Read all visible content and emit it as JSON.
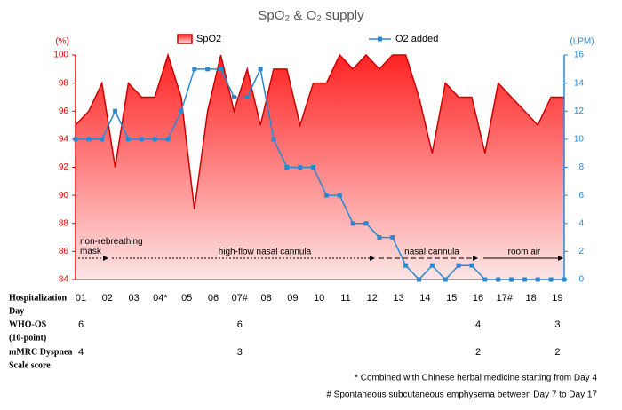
{
  "chart_data": {
    "type": "area_line",
    "title": "SpO₂ & O₂ supply",
    "y_label": "(%)",
    "y2_label": "(LPM)",
    "ylim": [
      84,
      100
    ],
    "yticks": [
      84,
      86,
      88,
      90,
      92,
      94,
      96,
      98,
      100
    ],
    "y2lim": [
      0,
      16
    ],
    "y2ticks": [
      0,
      2,
      4,
      6,
      8,
      10,
      12,
      14,
      16
    ],
    "xlim": [
      1,
      19.5
    ],
    "x": [
      1,
      1.5,
      2,
      2.5,
      3,
      3.5,
      4,
      4.5,
      5,
      5.5,
      6,
      6.5,
      7,
      7.5,
      8,
      8.5,
      9,
      9.5,
      10,
      10.5,
      11,
      11.5,
      12,
      12.5,
      13,
      13.5,
      14,
      14.5,
      15,
      15.5,
      16,
      16.5,
      17,
      17.5,
      18,
      18.5,
      19,
      19.5
    ],
    "categories": [
      "01",
      "02",
      "03",
      "04*",
      "05",
      "06",
      "07#",
      "08",
      "09",
      "10",
      "11",
      "12",
      "13",
      "14",
      "15",
      "16",
      "17#",
      "18",
      "19"
    ],
    "legend": "top",
    "series": [
      {
        "name": "SpO2",
        "color": "#cc0000",
        "values": [
          95,
          96,
          98,
          92,
          98,
          97,
          97,
          100,
          97,
          89,
          96,
          100,
          96,
          99,
          95,
          99,
          99,
          95,
          98,
          98,
          100,
          99,
          100,
          99,
          100,
          100,
          97,
          93,
          98,
          97,
          97,
          93,
          98,
          97,
          96,
          95,
          97,
          97
        ]
      },
      {
        "name": "O2 added",
        "color": "#2b88d0",
        "axis": "y2",
        "values": [
          10,
          10,
          10,
          12,
          10,
          10,
          10,
          10,
          12,
          15,
          15,
          15,
          13,
          13,
          15,
          10,
          8,
          8,
          8,
          6,
          6,
          4,
          4,
          3,
          3,
          1,
          0,
          1,
          0,
          1,
          1,
          0,
          0,
          0,
          0,
          0,
          0,
          0
        ]
      }
    ],
    "annotations": [
      "non-rebreathing mask",
      "high-flow nasal cannula",
      "nasal cannula",
      "room air"
    ],
    "table": [
      {
        "label": [
          "Hospitalization",
          "Day"
        ]
      },
      {
        "label": [
          "WHO-OS",
          "(10-point)"
        ],
        "values": [
          6,
          null,
          null,
          null,
          null,
          null,
          6,
          null,
          null,
          null,
          null,
          null,
          null,
          null,
          null,
          4,
          null,
          null,
          3
        ]
      },
      {
        "label": [
          "mMRC Dyspnea",
          "Scale score"
        ],
        "values": [
          4,
          null,
          null,
          null,
          null,
          null,
          3,
          null,
          null,
          null,
          null,
          null,
          null,
          null,
          null,
          2,
          null,
          null,
          2
        ]
      }
    ],
    "footnotes": [
      "* Combined with Chinese herbal medicine starting from Day 4",
      "# Spontaneous subcutaneous emphysema between Day 7 to Day 17"
    ]
  }
}
